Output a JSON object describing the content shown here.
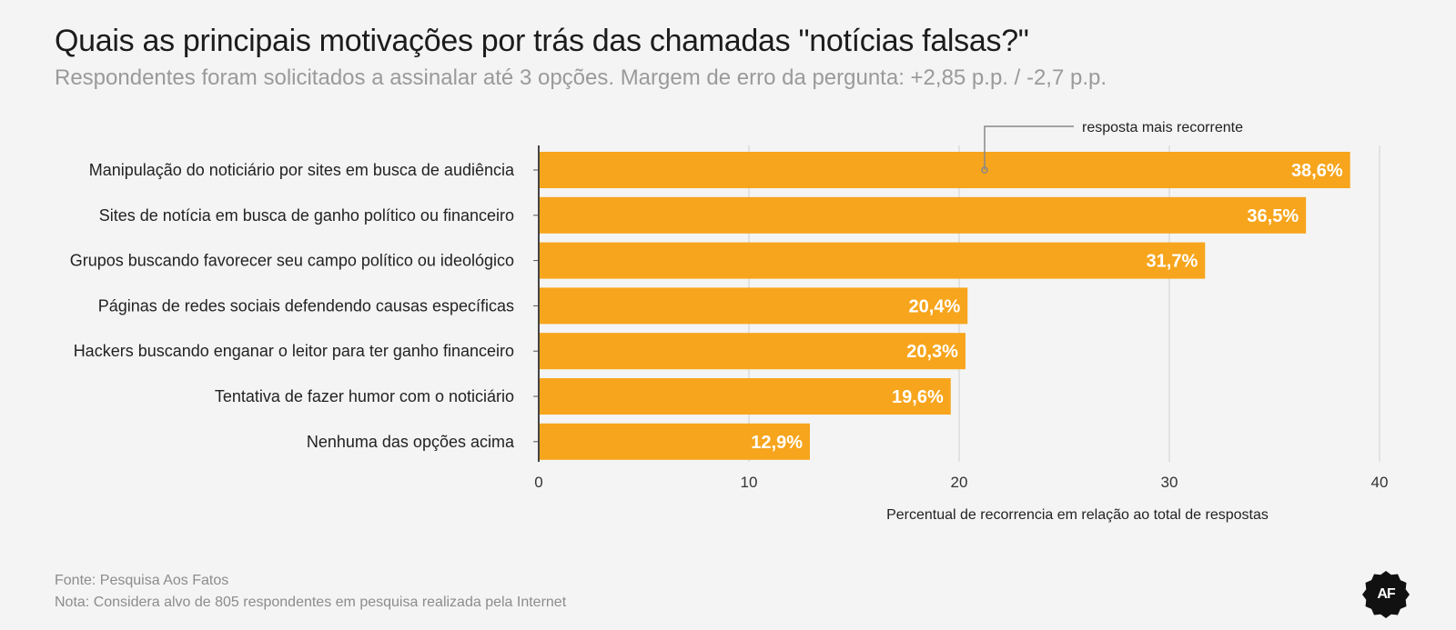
{
  "header": {
    "title": "Quais as principais motivações por trás das chamadas \"notícias falsas?\"",
    "subtitle": "Respondentes foram solicitados a assinalar até 3 opções. Margem de erro da pergunta: +2,85 p.p. / -2,7 p.p."
  },
  "chart_data": {
    "type": "bar",
    "orientation": "horizontal",
    "categories": [
      "Manipulação do noticiário por sites em busca de audiência",
      "Sites de notícia em busca de ganho político ou financeiro",
      "Grupos buscando favorecer seu campo político ou ideológico",
      "Páginas de redes sociais defendendo causas específicas",
      "Hackers buscando enganar o leitor para ter ganho financeiro",
      "Tentativa de fazer humor com o noticiário",
      "Nenhuma das opções acima"
    ],
    "values": [
      38.6,
      36.5,
      31.7,
      20.4,
      20.3,
      19.6,
      12.9
    ],
    "value_labels": [
      "38,6%",
      "36,5%",
      "31,7%",
      "20,4%",
      "20,3%",
      "19,6%",
      "12,9%"
    ],
    "xlabel": "Percentual de recorrencia em relação ao total de respostas",
    "xlim": [
      0,
      40
    ],
    "xticks": [
      0,
      10,
      20,
      30,
      40
    ],
    "grid": true,
    "bar_color": "#f7a51c",
    "annotation": {
      "text": "resposta mais recorrente",
      "target_category": "Manipulação do noticiário por sites em busca de audiência"
    }
  },
  "footer": {
    "source": "Fonte: Pesquisa Aos Fatos",
    "note": "Nota: Considera alvo de 805 respondentes em pesquisa realizada pela Internet"
  },
  "logo": {
    "text": "AF",
    "color": "#111111"
  }
}
